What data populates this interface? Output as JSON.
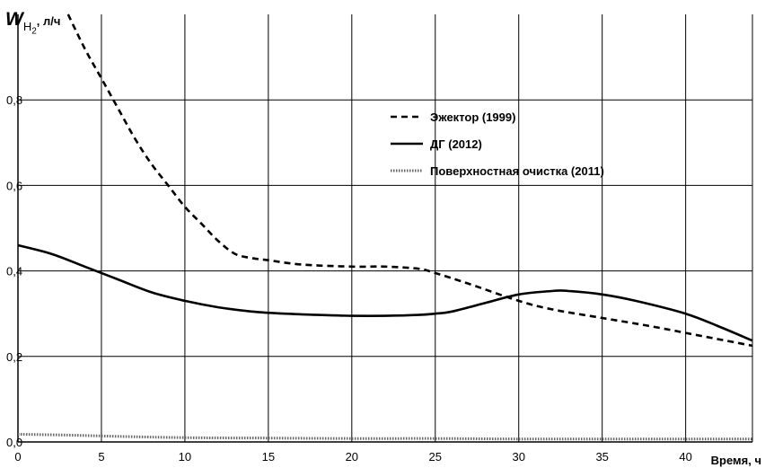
{
  "chart_data": {
    "type": "line",
    "ylabel": {
      "symbol": "W",
      "subscript": "H",
      "subscript_index": "2",
      "unit": ", л/ч"
    },
    "xlabel": "Время, ч",
    "xlim": [
      0,
      44
    ],
    "ylim": [
      0,
      1.0
    ],
    "x_ticks": [
      0,
      5,
      10,
      15,
      20,
      25,
      30,
      35,
      40
    ],
    "y_ticks": [
      0.0,
      0.2,
      0.4,
      0.6,
      0.8
    ],
    "y_tick_labels": [
      "0,0",
      "0,2",
      "0,4",
      "0,6",
      "0,8"
    ],
    "grid": true,
    "legend_position": "upper-right",
    "series": [
      {
        "name": "Эжектор (1999)",
        "style": "dashed",
        "color": "#000000",
        "x": [
          3,
          4,
          5,
          6,
          7,
          8,
          9,
          10,
          11,
          12,
          13,
          14,
          15,
          17,
          20,
          22,
          24,
          25,
          27,
          30,
          32,
          35,
          38,
          40,
          42,
          44
        ],
        "y": [
          1.0,
          0.92,
          0.85,
          0.78,
          0.71,
          0.65,
          0.6,
          0.55,
          0.51,
          0.47,
          0.44,
          0.43,
          0.425,
          0.415,
          0.41,
          0.41,
          0.405,
          0.395,
          0.37,
          0.33,
          0.31,
          0.29,
          0.27,
          0.255,
          0.24,
          0.225
        ]
      },
      {
        "name": "ДГ (2012)",
        "style": "solid",
        "color": "#000000",
        "x": [
          0,
          2,
          4,
          6,
          8,
          10,
          12,
          14,
          16,
          18,
          20,
          22,
          24,
          25,
          26,
          28,
          30,
          32,
          33,
          35,
          37,
          40,
          42,
          44
        ],
        "y": [
          0.46,
          0.44,
          0.41,
          0.38,
          0.35,
          0.33,
          0.315,
          0.305,
          0.3,
          0.297,
          0.295,
          0.295,
          0.297,
          0.3,
          0.305,
          0.325,
          0.345,
          0.353,
          0.353,
          0.345,
          0.33,
          0.3,
          0.27,
          0.237
        ]
      },
      {
        "name": "Поверхностная очистка (2011)",
        "style": "dotted",
        "color": "#666666",
        "x": [
          0,
          3,
          6,
          10,
          15,
          20,
          25,
          30,
          35,
          40,
          44
        ],
        "y": [
          0.018,
          0.016,
          0.013,
          0.01,
          0.009,
          0.008,
          0.008,
          0.007,
          0.007,
          0.007,
          0.007
        ]
      }
    ]
  }
}
